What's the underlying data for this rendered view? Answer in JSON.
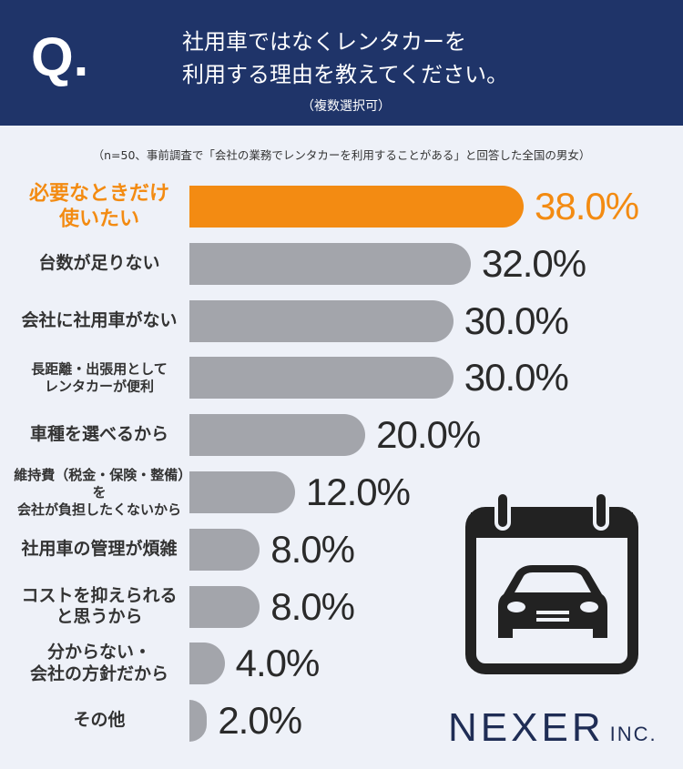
{
  "header_mark": "Q.",
  "chart_data": {
    "type": "bar",
    "title": "社用車ではなくレンタカーを\n利用する理由を教えてください。",
    "subtitle": "（複数選択可）",
    "note": "（n=50、事前調査で「会社の業務でレンタカーを利用することがある」と回答した全国の男女）",
    "categories": [
      "必要なときだけ\n使いたい",
      "台数が足りない",
      "会社に社用車がない",
      "長距離・出張用として\nレンタカーが便利",
      "車種を選べるから",
      "維持費（税金・保険・整備）を\n会社が負担したくないから",
      "社用車の管理が煩雑",
      "コストを抑えられる\nと思うから",
      "分からない・\n会社の方針だから",
      "その他"
    ],
    "values": [
      38,
      32,
      30,
      30,
      20,
      12,
      8,
      8,
      4,
      2
    ],
    "value_labels": [
      "38.0%",
      "32.0%",
      "30.0%",
      "30.0%",
      "20.0%",
      "12.0%",
      "8.0%",
      "8.0%",
      "4.0%",
      "2.0%"
    ],
    "colors": [
      "#f38b12",
      "#a3a5ab",
      "#a3a5ab",
      "#a3a5ab",
      "#a3a5ab",
      "#a3a5ab",
      "#a3a5ab",
      "#a3a5ab",
      "#a3a5ab",
      "#a3a5ab"
    ]
  },
  "brand": {
    "name": "NEXER",
    "suffix": "INC."
  }
}
